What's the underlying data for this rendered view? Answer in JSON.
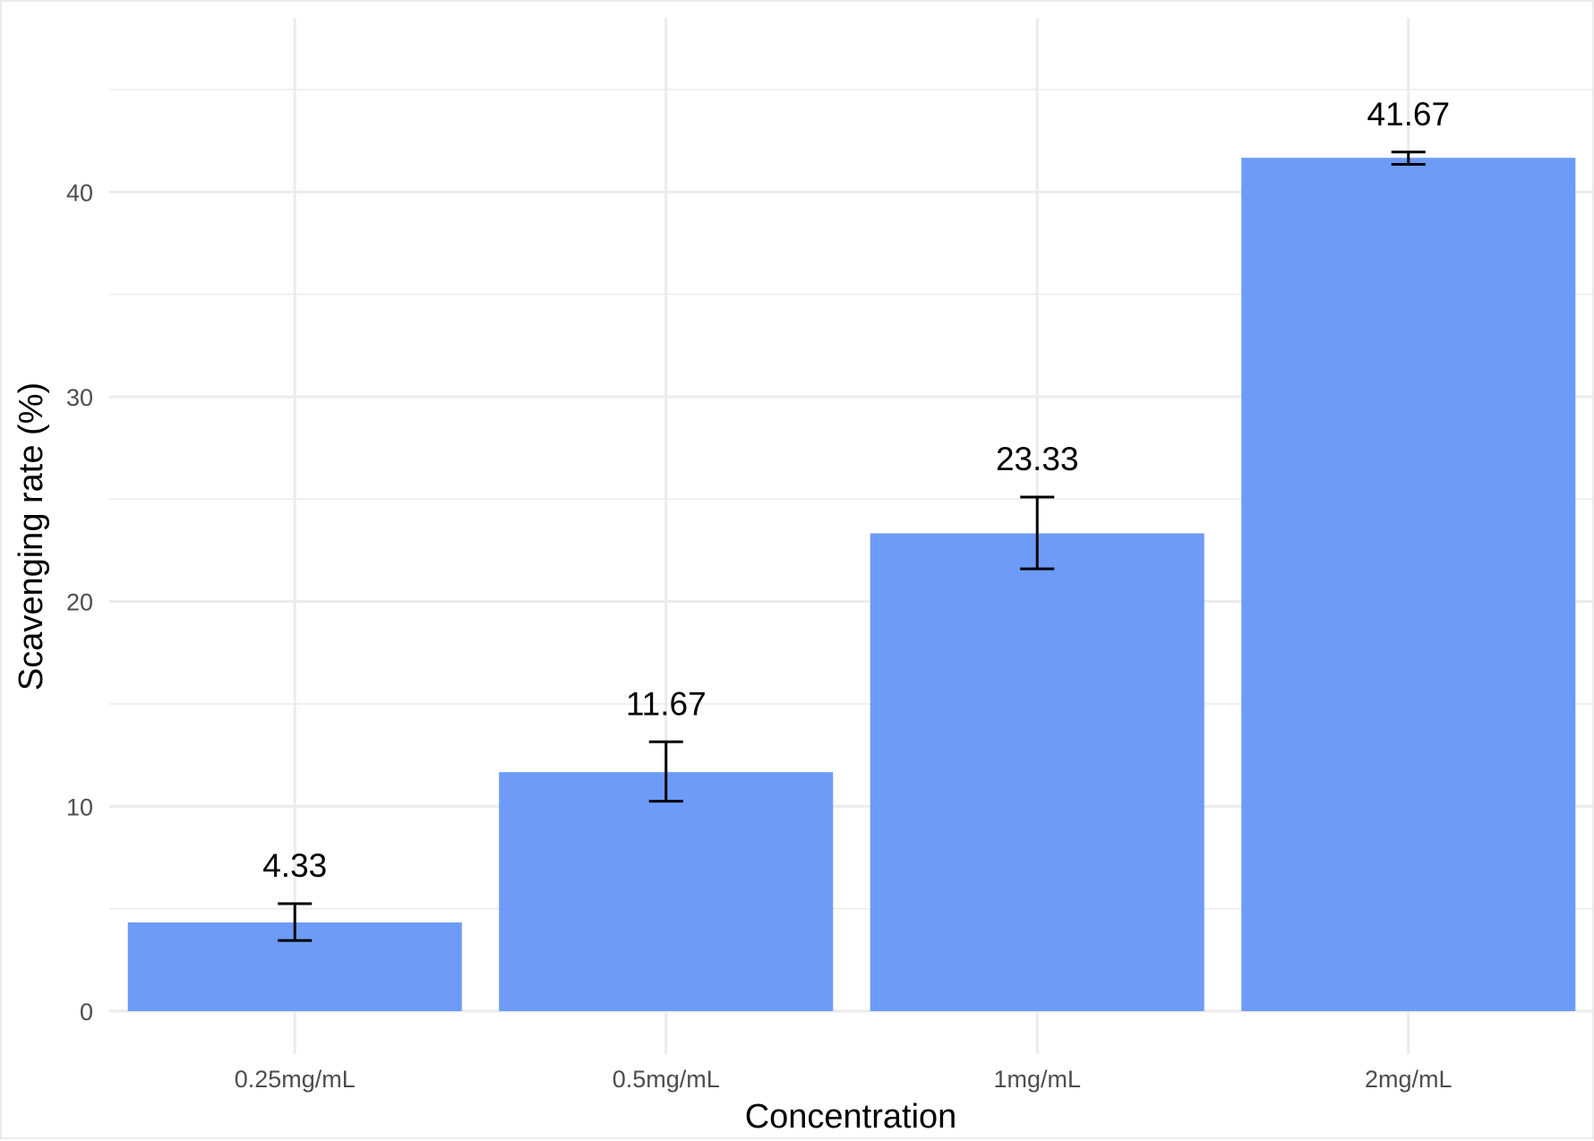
{
  "colors": {
    "bar": "#6d9bf7",
    "grid": "#ebebeb",
    "tick_text": "#4d4d4d",
    "label_text": "#000000"
  },
  "chart_data": {
    "type": "bar",
    "title": "",
    "xlabel": "Concentration",
    "ylabel": "Scavenging rate (%)",
    "categories": [
      "0.25mg/mL",
      "0.5mg/mL",
      "1mg/mL",
      "2mg/mL"
    ],
    "values": [
      4.33,
      11.67,
      23.33,
      41.67
    ],
    "data_labels": [
      "4.33",
      "11.67",
      "23.33",
      "41.67"
    ],
    "error_bars": [
      {
        "low": 3.45,
        "high": 5.25
      },
      {
        "low": 10.25,
        "high": 13.15
      },
      {
        "low": 21.6,
        "high": 25.1
      },
      {
        "low": 41.35,
        "high": 41.95
      }
    ],
    "ylim": [
      -2.1,
      48.5
    ],
    "y_ticks": [
      0,
      10,
      20,
      30,
      40
    ],
    "y_tick_labels": [
      "0",
      "10",
      "20",
      "30",
      "40"
    ],
    "grid": true,
    "legend": "none"
  }
}
